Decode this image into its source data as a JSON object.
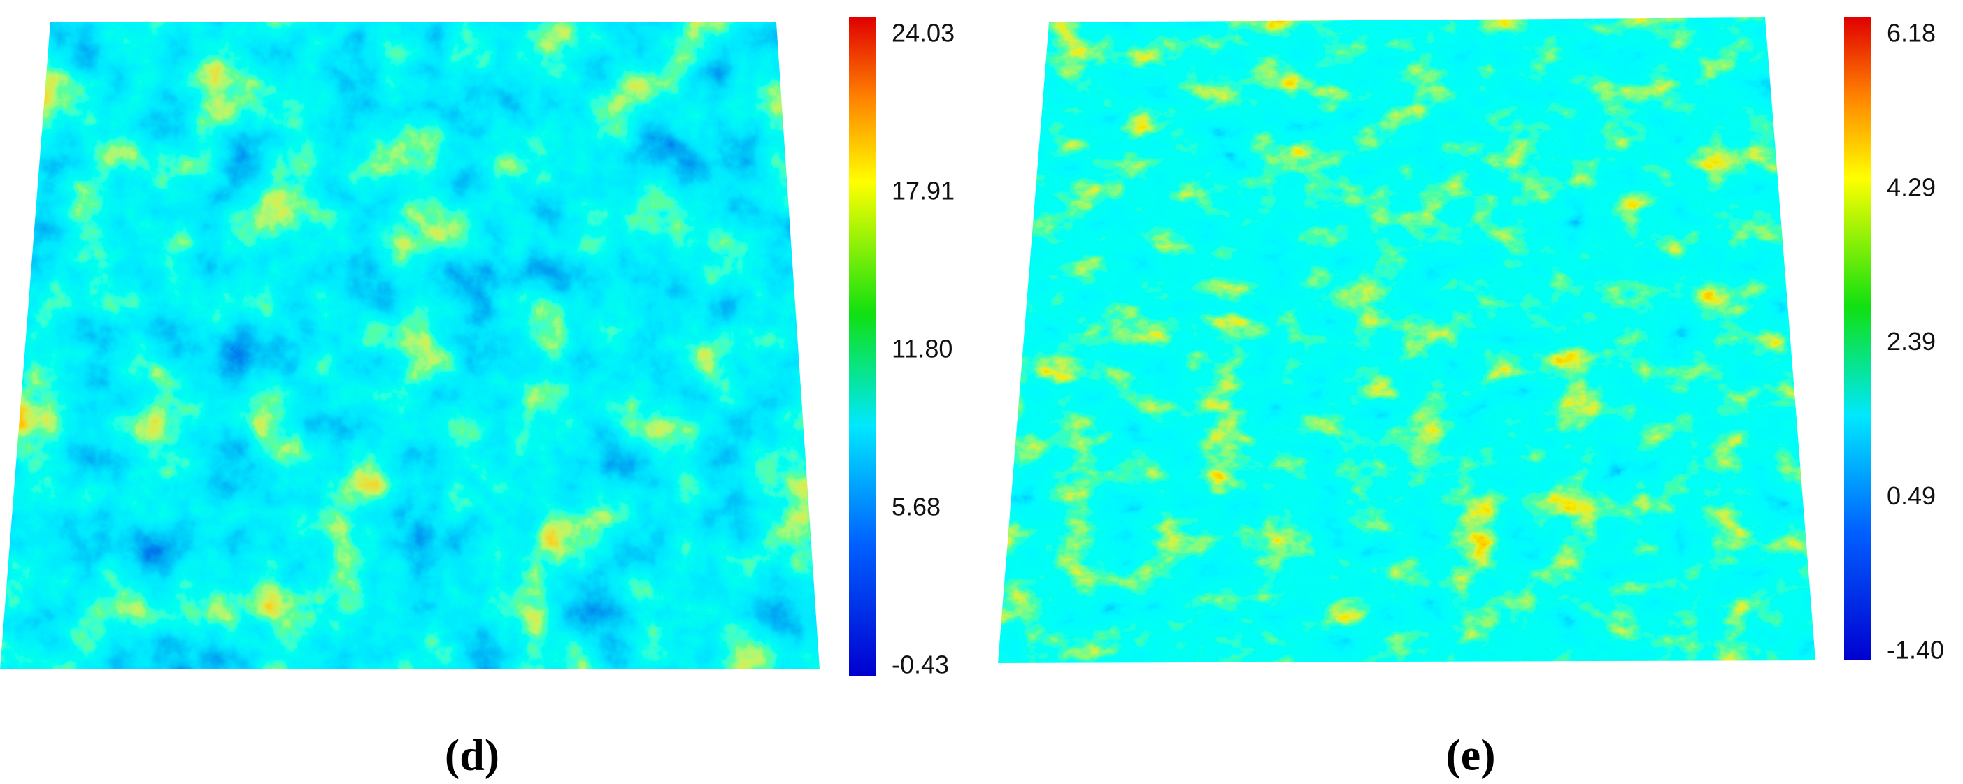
{
  "panels": [
    {
      "label": "(d)",
      "colorbar": {
        "ticks": [
          "24.03",
          "17.91",
          "11.80",
          "5.68",
          "-0.43"
        ]
      }
    },
    {
      "label": "(e)",
      "colorbar": {
        "ticks": [
          "6.18",
          "4.29",
          "2.39",
          "0.49",
          "-1.40"
        ]
      }
    }
  ]
}
